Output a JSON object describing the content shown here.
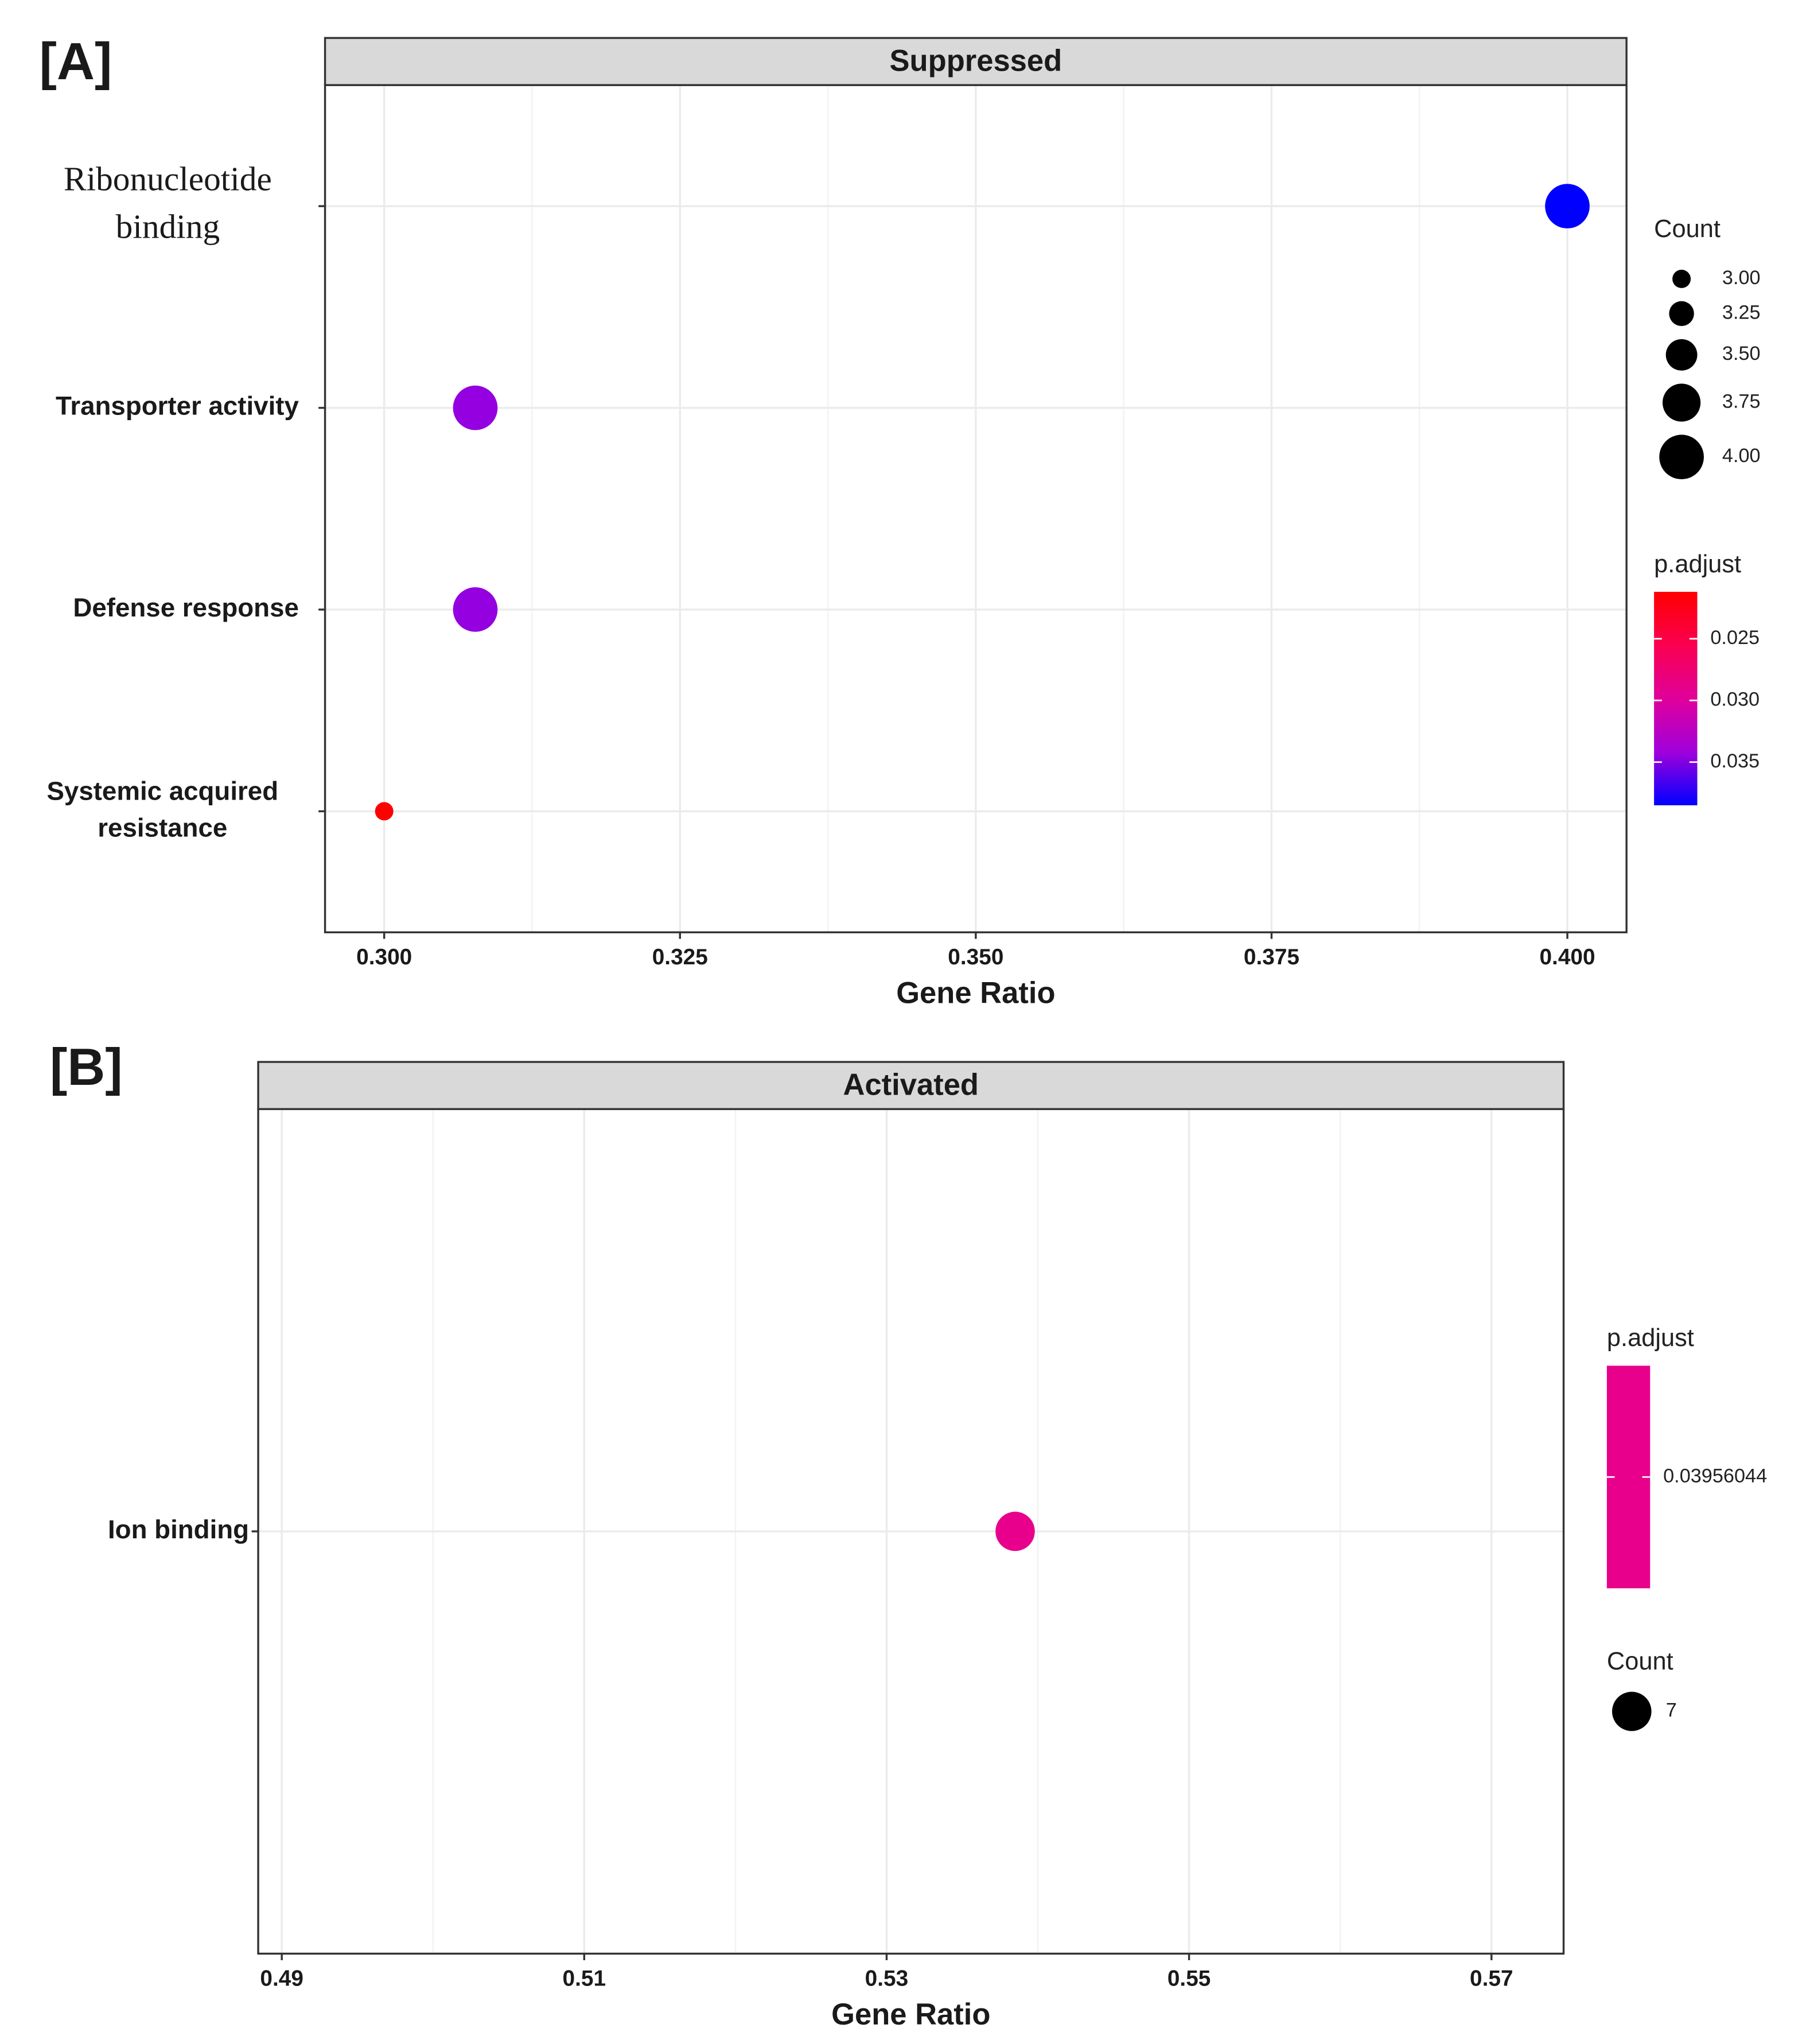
{
  "chart_data": [
    {
      "type": "dot",
      "panel_label": "[A]",
      "title": "Suppressed",
      "x_label": "Gene Ratio",
      "categories": [
        "Ribonucleotide\nbinding",
        "Transporter activity",
        "Defense response",
        "Systemic acquired\nresistance"
      ],
      "values": [
        0.4,
        0.3077,
        0.3077,
        0.3
      ],
      "sizes": [
        4,
        4,
        4,
        3
      ],
      "p_adjust": [
        0.0385,
        0.0345,
        0.0345,
        0.0212
      ],
      "xlim": [
        0.295,
        0.405
      ],
      "xticks": [
        {
          "value": 0.3,
          "label": "0.300"
        },
        0.325,
        {
          "value": 0.35,
          "label": "0.350"
        },
        0.375,
        {
          "value": 0.4,
          "label": "0.400"
        }
      ],
      "grid": true,
      "size_title": "Count",
      "sizelim": [
        3,
        4
      ],
      "sizeticks": [
        {
          "value": 3,
          "label": "3.00"
        },
        3.25,
        {
          "value": 3.5,
          "label": "3.50"
        },
        3.75,
        {
          "value": 4,
          "label": "4.00"
        }
      ],
      "color_title": "p.adjust",
      "colorlim": [
        0.0212,
        0.0385
      ],
      "colorticks": [
        0.025,
        {
          "value": 0.03,
          "label": "0.030"
        },
        0.035
      ],
      "colors": [
        "#ff0000",
        "#fa0050",
        "#e0009a",
        "#a000dc",
        "#0000ff"
      ],
      "legend_order": [
        "size",
        "color"
      ]
    },
    {
      "type": "dot",
      "panel_label": "[B]",
      "title": "Activated",
      "x_label": "Gene Ratio",
      "categories": [
        "Ion binding"
      ],
      "values": [
        0.5385
      ],
      "sizes": [
        7
      ],
      "p_adjust": [
        0.03956044
      ],
      "xlim": [
        0.48844,
        0.57477
      ],
      "xticks": [
        0.49,
        0.51,
        0.53,
        0.55,
        0.57
      ],
      "grid": true,
      "size_title": "Count",
      "sizelim": [
        7,
        7
      ],
      "sizeticks": [
        7
      ],
      "color_title": "p.adjust",
      "colorlim": [
        0.03956044,
        0.03956044
      ],
      "colorticks": [
        0.03956044
      ],
      "colors": [
        "#e8008c"
      ],
      "legend_order": [
        "color",
        "size"
      ]
    }
  ]
}
